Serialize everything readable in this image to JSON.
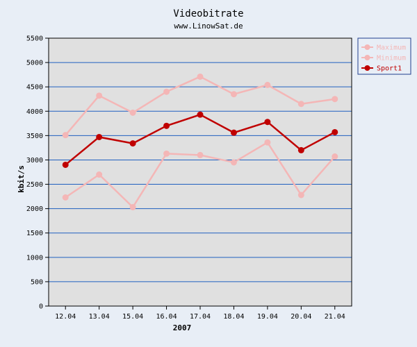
{
  "chart_data": {
    "type": "line",
    "title": "Videobitrate",
    "subtitle": "www.LinowSat.de",
    "xlabel": "2007",
    "ylabel": "kbit/s",
    "categories": [
      "12.04",
      "13.04",
      "15.04",
      "16.04",
      "17.04",
      "18.04",
      "19.04",
      "20.04",
      "21.04"
    ],
    "ylim": [
      0,
      5500
    ],
    "yticks": [
      0,
      500,
      1000,
      1500,
      2000,
      2500,
      3000,
      3500,
      4000,
      4500,
      5000,
      5500
    ],
    "grid": true,
    "legend_position": "right",
    "series": [
      {
        "name": "Maximum",
        "color": "#f4b6b6",
        "values": [
          3510,
          4320,
          3970,
          4400,
          4710,
          4350,
          4540,
          4150,
          4250
        ]
      },
      {
        "name": "Minimum",
        "color": "#f4b6b6",
        "values": [
          2230,
          2700,
          2030,
          3130,
          3100,
          2950,
          3360,
          2280,
          3070
        ]
      },
      {
        "name": "Sport1",
        "color": "#c00000",
        "values": [
          2900,
          3470,
          3340,
          3700,
          3930,
          3560,
          3780,
          3200,
          3570
        ]
      }
    ]
  },
  "colors": {
    "page_background": "#e8eef6",
    "plot_background": "#e0e0e0",
    "gridline": "#1f5fbf"
  }
}
